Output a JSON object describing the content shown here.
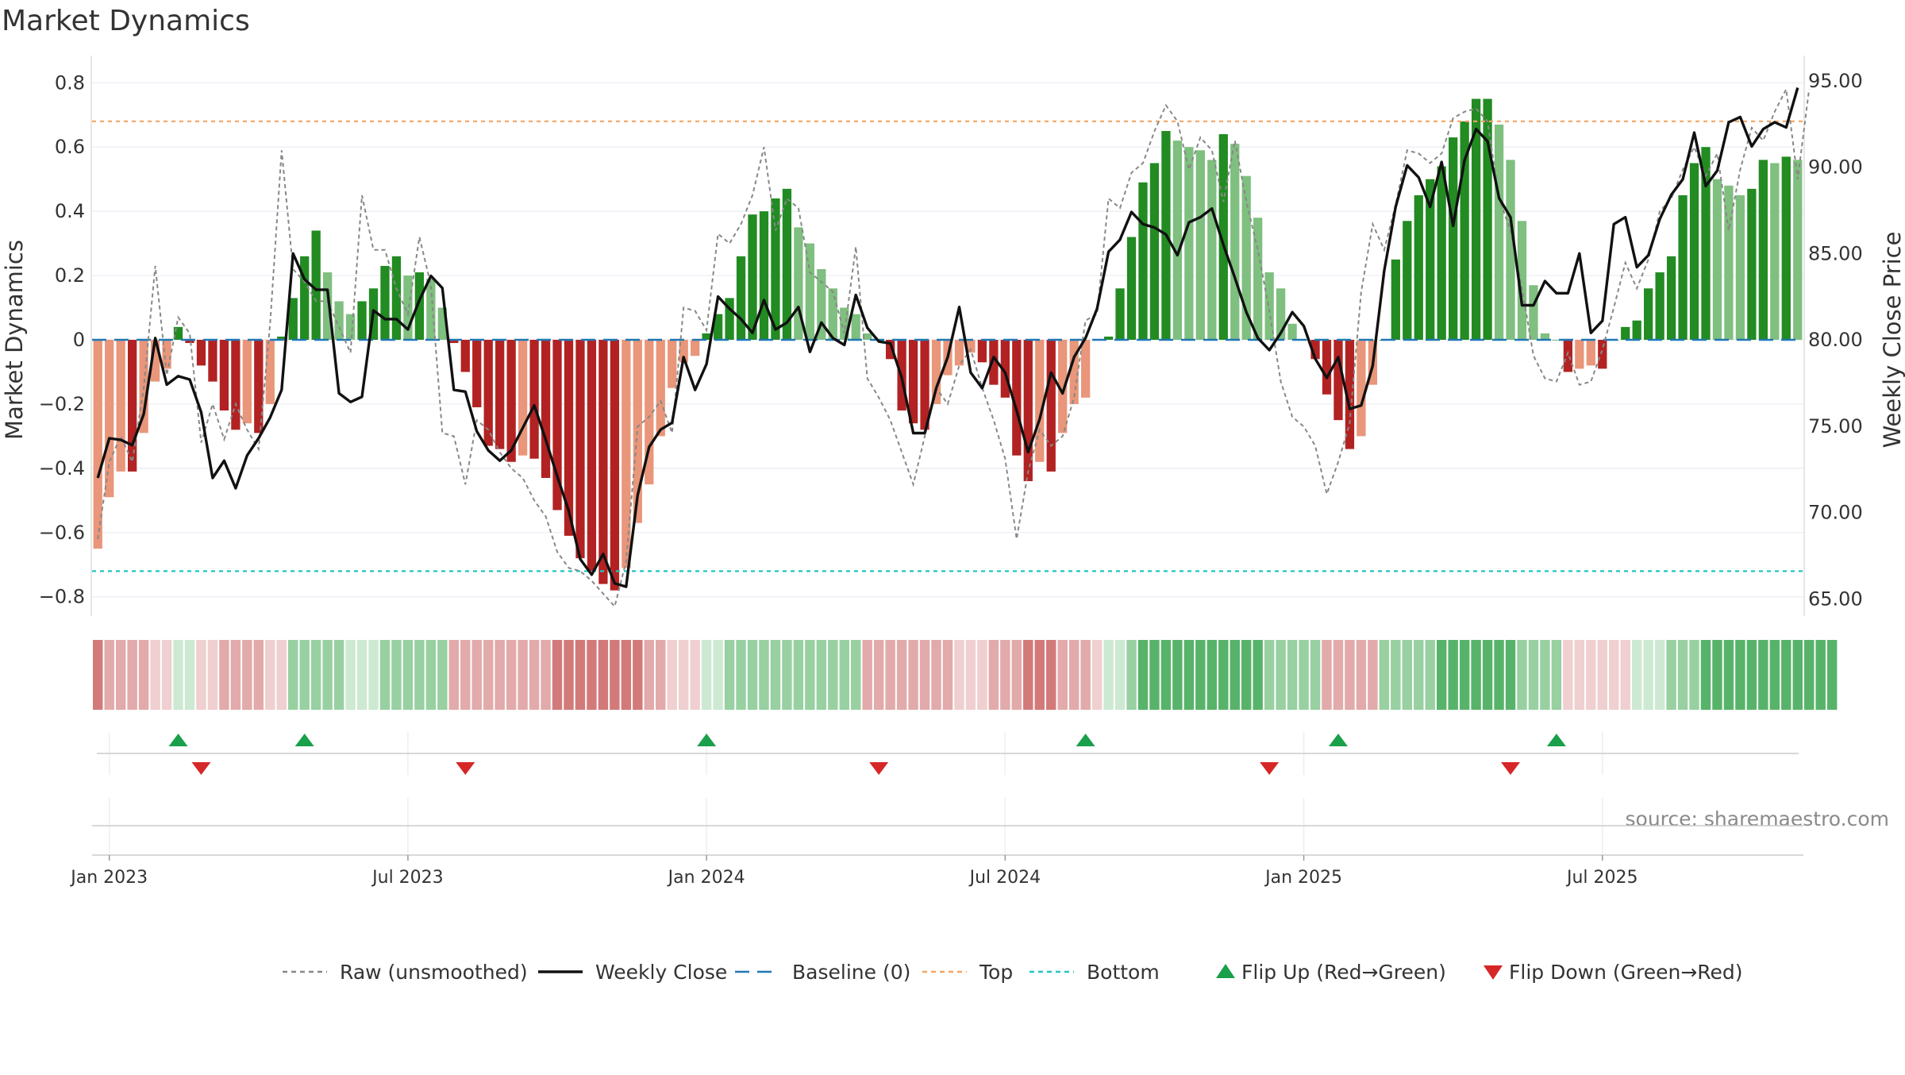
{
  "title": "Market Dynamics",
  "source": "source: sharemaestro.com",
  "colors": {
    "strong_red": "#b22222",
    "light_red": "#e9967a",
    "strong_green": "#228b22",
    "light_green": "#7fbf7f",
    "raw": "#888888",
    "close": "#111111",
    "baseline": "#1f77b4",
    "top": "#f4a460",
    "bottom": "#20c5c5",
    "flip_up": "#1aa04a",
    "flip_down": "#d62728"
  },
  "chart_data": {
    "type": "bar",
    "y_left": {
      "label": "Market Dynamics",
      "lim": [
        -0.86,
        0.86
      ],
      "ticks": [
        0.8,
        0.6,
        0.4,
        0.2,
        0,
        -0.2,
        -0.4,
        -0.6,
        -0.8
      ],
      "tick_labels": [
        "0.8",
        "0.6",
        "0.4",
        "0.2",
        "0",
        "−0.2",
        "−0.4",
        "−0.6",
        "−0.8"
      ]
    },
    "y_right": {
      "label": "Weekly Close Price",
      "lim": [
        64.0,
        96.0
      ],
      "ticks": [
        95,
        90,
        85,
        80,
        75,
        70,
        65
      ],
      "tick_labels": [
        "95.00",
        "90.00",
        "85.00",
        "80.00",
        "75.00",
        "70.00",
        "65.00"
      ]
    },
    "x_ticks": [
      "Jan 2023",
      "Jul 2023",
      "Jan 2024",
      "Jul 2024",
      "Jan 2025",
      "Jul 2025"
    ],
    "x_tick_weeks": [
      1.5,
      27.5,
      53.5,
      79.5,
      105.5,
      131.5
    ],
    "top_level": 0.68,
    "bottom_level": -0.72,
    "bars": [
      -0.65,
      -0.49,
      -0.41,
      -0.41,
      -0.29,
      -0.13,
      -0.09,
      0.04,
      -0.01,
      -0.08,
      -0.13,
      -0.22,
      -0.28,
      -0.26,
      -0.29,
      -0.2,
      0.01,
      0.13,
      0.26,
      0.34,
      0.21,
      0.12,
      0.08,
      0.12,
      0.16,
      0.23,
      0.26,
      0.2,
      0.21,
      0.19,
      0.1,
      -0.01,
      -0.1,
      -0.21,
      -0.33,
      -0.34,
      -0.38,
      -0.36,
      -0.37,
      -0.43,
      -0.53,
      -0.61,
      -0.68,
      -0.72,
      -0.76,
      -0.78,
      -0.71,
      -0.57,
      -0.45,
      -0.3,
      -0.15,
      -0.07,
      -0.05,
      0.02,
      0.08,
      0.13,
      0.26,
      0.39,
      0.4,
      0.44,
      0.47,
      0.35,
      0.3,
      0.22,
      0.16,
      0.1,
      0.08,
      0.02,
      0.0,
      -0.06,
      -0.22,
      -0.26,
      -0.28,
      -0.2,
      -0.11,
      -0.08,
      -0.04,
      -0.07,
      -0.14,
      -0.18,
      -0.36,
      -0.44,
      -0.38,
      -0.41,
      -0.29,
      -0.2,
      -0.18,
      0.0,
      0.01,
      0.16,
      0.32,
      0.49,
      0.55,
      0.65,
      0.62,
      0.6,
      0.59,
      0.56,
      0.64,
      0.61,
      0.51,
      0.38,
      0.21,
      0.16,
      0.05,
      0.0,
      -0.06,
      -0.17,
      -0.25,
      -0.34,
      -0.3,
      -0.14,
      0.0,
      0.25,
      0.37,
      0.45,
      0.5,
      0.54,
      0.63,
      0.68,
      0.75,
      0.75,
      0.67,
      0.56,
      0.37,
      0.17,
      0.02,
      0.0,
      -0.1,
      -0.09,
      -0.08,
      -0.09,
      0.0,
      0.04,
      0.06,
      0.16,
      0.21,
      0.26,
      0.45,
      0.55,
      0.6,
      0.5,
      0.48,
      0.45,
      0.47,
      0.56,
      0.55,
      0.57,
      0.56
    ],
    "raw": [
      -0.62,
      -0.38,
      -0.3,
      -0.38,
      -0.15,
      0.23,
      -0.11,
      0.07,
      0.02,
      -0.32,
      -0.2,
      -0.31,
      -0.2,
      -0.28,
      -0.34,
      0.05,
      0.59,
      0.22,
      0.18,
      0.12,
      0.12,
      0.04,
      -0.04,
      0.45,
      0.28,
      0.28,
      0.16,
      0.08,
      0.32,
      0.17,
      -0.29,
      -0.3,
      -0.45,
      -0.25,
      -0.28,
      -0.35,
      -0.4,
      -0.43,
      -0.5,
      -0.55,
      -0.66,
      -0.71,
      -0.72,
      -0.75,
      -0.79,
      -0.83,
      -0.69,
      -0.27,
      -0.24,
      -0.19,
      -0.29,
      0.1,
      0.09,
      0.03,
      0.33,
      0.3,
      0.36,
      0.45,
      0.6,
      0.34,
      0.44,
      0.41,
      0.21,
      0.18,
      0.15,
      0.02,
      0.29,
      -0.12,
      -0.18,
      -0.25,
      -0.35,
      -0.45,
      -0.3,
      -0.15,
      -0.2,
      -0.08,
      -0.03,
      -0.15,
      -0.25,
      -0.37,
      -0.62,
      -0.41,
      -0.28,
      -0.33,
      -0.3,
      -0.18,
      0.06,
      0.08,
      0.44,
      0.41,
      0.52,
      0.55,
      0.65,
      0.73,
      0.68,
      0.53,
      0.63,
      0.59,
      0.43,
      0.62,
      0.43,
      0.28,
      0.09,
      -0.13,
      -0.24,
      -0.27,
      -0.33,
      -0.48,
      -0.38,
      -0.26,
      0.15,
      0.36,
      0.28,
      0.42,
      0.59,
      0.58,
      0.55,
      0.58,
      0.69,
      0.71,
      0.72,
      0.68,
      0.44,
      0.34,
      0.16,
      -0.05,
      -0.12,
      -0.13,
      -0.04,
      -0.14,
      -0.13,
      -0.03,
      0.1,
      0.24,
      0.16,
      0.25,
      0.4,
      0.44,
      0.53,
      0.6,
      0.51,
      0.58,
      0.34,
      0.53,
      0.66,
      0.62,
      0.71,
      0.78,
      0.5,
      0.78
    ],
    "close": [
      72.0,
      74.3,
      74.2,
      73.9,
      75.7,
      80.1,
      77.4,
      77.9,
      77.7,
      75.8,
      72.0,
      73.0,
      71.4,
      73.3,
      74.3,
      75.5,
      77.1,
      85.0,
      83.5,
      82.9,
      82.9,
      76.9,
      76.4,
      76.7,
      81.7,
      81.2,
      81.2,
      80.6,
      82.3,
      83.7,
      83.0,
      77.1,
      77.0,
      74.7,
      73.6,
      73.0,
      73.6,
      74.9,
      76.2,
      74.2,
      72.1,
      70.1,
      67.3,
      66.4,
      67.6,
      65.9,
      65.7,
      71.0,
      73.8,
      74.8,
      75.2,
      79.0,
      77.1,
      78.6,
      82.5,
      81.8,
      81.2,
      80.4,
      82.3,
      80.6,
      81.0,
      81.9,
      79.3,
      81.0,
      80.1,
      79.7,
      82.6,
      80.7,
      79.9,
      79.8,
      77.8,
      74.6,
      74.6,
      77.2,
      79.0,
      81.9,
      78.1,
      77.2,
      79.0,
      78.1,
      75.9,
      73.5,
      75.4,
      78.1,
      76.9,
      79.0,
      80.1,
      81.8,
      85.1,
      85.8,
      87.4,
      86.7,
      86.5,
      86.1,
      84.9,
      86.8,
      87.1,
      87.6,
      85.5,
      83.6,
      81.6,
      80.1,
      79.4,
      80.4,
      81.6,
      80.8,
      78.9,
      77.8,
      79.0,
      76.0,
      76.2,
      78.5,
      84.0,
      87.7,
      90.1,
      89.4,
      87.7,
      90.3,
      86.6,
      90.4,
      92.2,
      91.5,
      88.2,
      87.1,
      82.0,
      82.0,
      83.4,
      82.7,
      82.7,
      85.0,
      80.4,
      81.1,
      86.7,
      87.1,
      84.2,
      84.9,
      87.0,
      88.4,
      89.3,
      92.0,
      88.9,
      89.8,
      92.6,
      92.9,
      91.2,
      92.2,
      92.6,
      92.3,
      94.6
    ],
    "regime_strip": [
      "r3",
      "r2",
      "r2",
      "r2",
      "r2",
      "r1",
      "r1",
      "g1",
      "g1",
      "r1",
      "r1",
      "r2",
      "r2",
      "r2",
      "r2",
      "r1",
      "r1",
      "g2",
      "g2",
      "g2",
      "g2",
      "g2",
      "g1",
      "g1",
      "g1",
      "g2",
      "g2",
      "g2",
      "g2",
      "g2",
      "g2",
      "r2",
      "r2",
      "r2",
      "r2",
      "r2",
      "r2",
      "r2",
      "r2",
      "r2",
      "r3",
      "r3",
      "r3",
      "r3",
      "r3",
      "r3",
      "r3",
      "r3",
      "r2",
      "r2",
      "r1",
      "r1",
      "r1",
      "g1",
      "g1",
      "g2",
      "g2",
      "g2",
      "g2",
      "g2",
      "g2",
      "g2",
      "g2",
      "g2",
      "g2",
      "g2",
      "g2",
      "r2",
      "r2",
      "r2",
      "r2",
      "r2",
      "r2",
      "r2",
      "r2",
      "r1",
      "r1",
      "r1",
      "r2",
      "r2",
      "r2",
      "r3",
      "r3",
      "r3",
      "r2",
      "r2",
      "r2",
      "r1",
      "g1",
      "g1",
      "g2",
      "g3",
      "g3",
      "g3",
      "g3",
      "g3",
      "g3",
      "g3",
      "g3",
      "g3",
      "g3",
      "g3",
      "g2",
      "g2",
      "g2",
      "g2",
      "g2",
      "r2",
      "r2",
      "r2",
      "r2",
      "r2",
      "g2",
      "g2",
      "g2",
      "g2",
      "g2",
      "g3",
      "g3",
      "g3",
      "g3",
      "g3",
      "g3",
      "g3",
      "g2",
      "g2",
      "g2",
      "g2",
      "r1",
      "r1",
      "r1",
      "r1",
      "r1",
      "r1",
      "g1",
      "g1",
      "g1",
      "g2",
      "g2",
      "g2",
      "g3",
      "g3",
      "g3",
      "g3",
      "g3",
      "g3",
      "g3",
      "g3",
      "g3",
      "g3",
      "g3",
      "g3"
    ],
    "flips_up": [
      7.5,
      18.5,
      53.5,
      86.5,
      108.5,
      127.5
    ],
    "flips_down": [
      9.5,
      32.5,
      68.5,
      102.5,
      123.5
    ]
  },
  "legend": [
    {
      "label": "Raw (unsmoothed)",
      "kind": "dotted",
      "color": "#888888"
    },
    {
      "label": "Weekly Close",
      "kind": "solid",
      "color": "#111111"
    },
    {
      "label": "Baseline (0)",
      "kind": "dashed",
      "color": "#1f77b4"
    },
    {
      "label": "Top",
      "kind": "dotted",
      "color": "#f4a460"
    },
    {
      "label": "Bottom",
      "kind": "dotted",
      "color": "#20c5c5"
    },
    {
      "label": "Flip Up (Red→Green)",
      "kind": "tri-up",
      "color": "#1aa04a"
    },
    {
      "label": "Flip Down (Green→Red)",
      "kind": "tri-down",
      "color": "#d62728"
    }
  ]
}
